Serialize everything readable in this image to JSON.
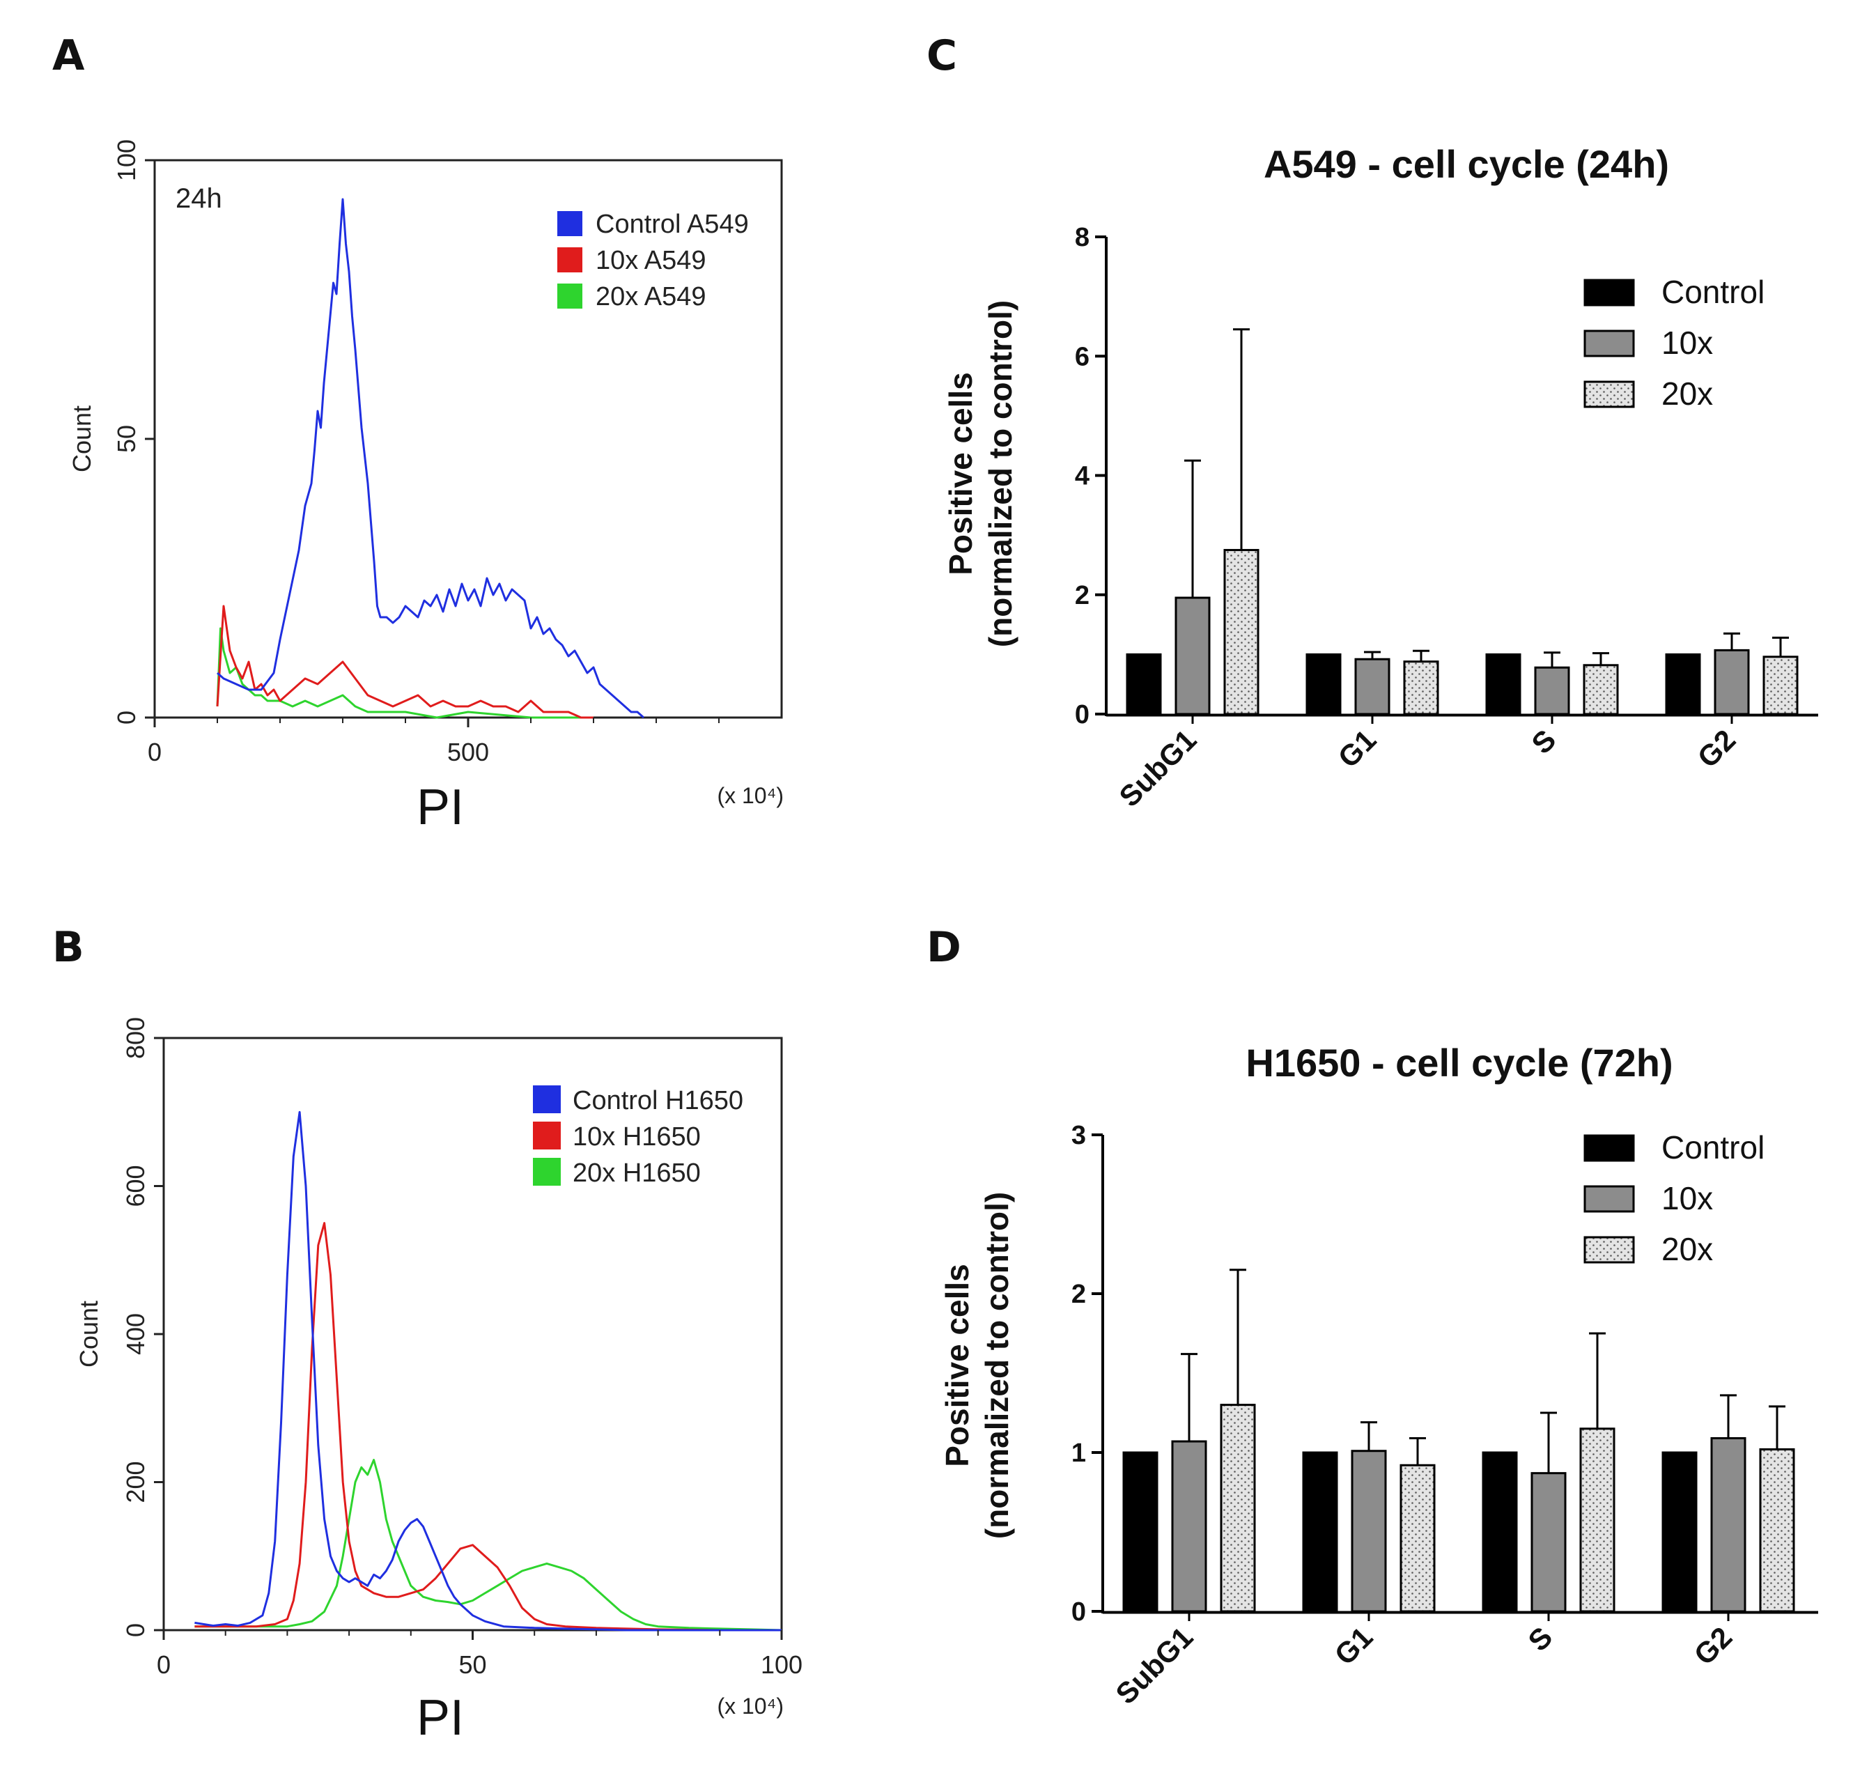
{
  "panel_letters": {
    "a": "A",
    "b": "B",
    "c": "C",
    "d": "D"
  },
  "colors": {
    "blue": "#1f2fe0",
    "red": "#e01c1c",
    "green": "#2ed42e",
    "black": "#000000",
    "gray": "#8c8c8c",
    "dotted": "#dedede"
  },
  "chart_data": [
    {
      "id": "A",
      "type": "line",
      "kind": "histogram",
      "annotation": "24h",
      "xlabel": "PI",
      "unit": "(x 10⁴)",
      "ylabel": "Count",
      "xlim": [
        0,
        1000
      ],
      "ylim": [
        0,
        100
      ],
      "x_ticks": [
        "0",
        "500"
      ],
      "y_ticks": [
        "0",
        "50",
        "100"
      ],
      "legend": [
        "Control A549",
        "10x A549",
        "20x A549"
      ],
      "series": [
        {
          "name": "Control A549",
          "x": [
            100,
            110,
            130,
            150,
            170,
            190,
            200,
            215,
            230,
            240,
            250,
            255,
            260,
            265,
            270,
            275,
            280,
            285,
            290,
            295,
            300,
            305,
            310,
            315,
            320,
            330,
            340,
            350,
            355,
            360,
            370,
            380,
            390,
            400,
            410,
            420,
            430,
            440,
            450,
            460,
            470,
            480,
            490,
            500,
            510,
            520,
            530,
            540,
            550,
            560,
            570,
            580,
            590,
            600,
            610,
            620,
            630,
            640,
            650,
            660,
            670,
            680,
            690,
            700,
            710,
            720,
            730,
            740,
            750,
            760,
            770,
            780
          ],
          "y": [
            8,
            7,
            6,
            5,
            5,
            8,
            14,
            22,
            30,
            38,
            42,
            48,
            55,
            52,
            60,
            66,
            72,
            78,
            76,
            85,
            93,
            85,
            80,
            72,
            66,
            52,
            42,
            28,
            20,
            18,
            18,
            17,
            18,
            20,
            19,
            18,
            21,
            20,
            22,
            19,
            23,
            20,
            24,
            21,
            23,
            20,
            25,
            22,
            24,
            21,
            23,
            22,
            21,
            16,
            18,
            15,
            16,
            14,
            13,
            11,
            12,
            10,
            8,
            9,
            6,
            5,
            4,
            3,
            2,
            1,
            1,
            0
          ]
        },
        {
          "name": "10x A549",
          "x": [
            100,
            110,
            120,
            130,
            140,
            150,
            160,
            170,
            180,
            190,
            200,
            220,
            240,
            260,
            280,
            300,
            320,
            340,
            360,
            380,
            400,
            420,
            440,
            460,
            480,
            500,
            520,
            540,
            560,
            580,
            600,
            620,
            640,
            660,
            680,
            700
          ],
          "y": [
            2,
            20,
            12,
            9,
            7,
            10,
            5,
            6,
            4,
            5,
            3,
            5,
            7,
            6,
            8,
            10,
            7,
            4,
            3,
            2,
            3,
            4,
            2,
            3,
            2,
            2,
            3,
            2,
            2,
            1,
            3,
            1,
            1,
            1,
            0,
            0
          ]
        },
        {
          "name": "20x A549",
          "x": [
            100,
            105,
            110,
            120,
            130,
            140,
            150,
            160,
            170,
            180,
            190,
            200,
            220,
            240,
            260,
            280,
            300,
            320,
            340,
            360,
            400,
            450,
            500,
            600,
            700
          ],
          "y": [
            2,
            16,
            12,
            8,
            9,
            6,
            5,
            4,
            4,
            3,
            3,
            3,
            2,
            3,
            2,
            3,
            4,
            2,
            1,
            1,
            1,
            0,
            1,
            0,
            0
          ]
        }
      ]
    },
    {
      "id": "B",
      "type": "line",
      "kind": "histogram",
      "xlabel": "PI",
      "unit": "(x 10⁴)",
      "ylabel": "Count",
      "xlim": [
        0,
        100
      ],
      "ylim": [
        0,
        800
      ],
      "x_ticks": [
        "0",
        "50",
        "100"
      ],
      "y_ticks": [
        "0",
        "200",
        "400",
        "600",
        "800"
      ],
      "legend": [
        "Control H1650",
        "10x H1650",
        "20x H1650"
      ],
      "series": [
        {
          "name": "Control H1650",
          "x": [
            5,
            8,
            10,
            12,
            14,
            16,
            17,
            18,
            19,
            20,
            21,
            22,
            23,
            24,
            25,
            26,
            27,
            28,
            29,
            30,
            31,
            32,
            33,
            34,
            35,
            36,
            37,
            38,
            39,
            40,
            41,
            42,
            43,
            44,
            45,
            46,
            47,
            48,
            50,
            52,
            55,
            60,
            65,
            70,
            75,
            80,
            90,
            100
          ],
          "y": [
            10,
            6,
            8,
            6,
            10,
            20,
            50,
            120,
            280,
            480,
            640,
            700,
            600,
            420,
            250,
            150,
            100,
            80,
            70,
            65,
            70,
            65,
            60,
            75,
            70,
            80,
            95,
            120,
            135,
            145,
            150,
            140,
            120,
            100,
            80,
            60,
            45,
            35,
            20,
            12,
            5,
            3,
            2,
            1,
            0,
            0,
            0,
            0
          ]
        },
        {
          "name": "10x H1650",
          "x": [
            5,
            10,
            15,
            18,
            20,
            21,
            22,
            23,
            24,
            25,
            26,
            27,
            28,
            29,
            30,
            31,
            32,
            33,
            34,
            36,
            38,
            40,
            42,
            44,
            46,
            48,
            50,
            52,
            54,
            56,
            58,
            60,
            62,
            65,
            70,
            75,
            80,
            90,
            100
          ],
          "y": [
            5,
            5,
            5,
            8,
            15,
            40,
            90,
            200,
            380,
            520,
            550,
            480,
            340,
            200,
            120,
            80,
            60,
            55,
            50,
            45,
            45,
            50,
            55,
            70,
            90,
            110,
            115,
            100,
            85,
            60,
            30,
            15,
            8,
            5,
            3,
            2,
            1,
            0,
            0
          ]
        },
        {
          "name": "20x H1650",
          "x": [
            5,
            10,
            15,
            20,
            22,
            24,
            26,
            28,
            29,
            30,
            31,
            32,
            33,
            34,
            35,
            36,
            37,
            38,
            39,
            40,
            42,
            44,
            46,
            48,
            50,
            52,
            54,
            56,
            58,
            60,
            62,
            64,
            66,
            68,
            70,
            72,
            74,
            76,
            78,
            80,
            85,
            90,
            95,
            100
          ],
          "y": [
            5,
            5,
            5,
            5,
            8,
            12,
            25,
            60,
            100,
            150,
            200,
            220,
            210,
            230,
            200,
            150,
            120,
            100,
            80,
            60,
            45,
            40,
            38,
            35,
            40,
            50,
            60,
            70,
            80,
            85,
            90,
            85,
            80,
            70,
            55,
            40,
            25,
            15,
            8,
            5,
            3,
            2,
            1,
            0
          ]
        }
      ]
    },
    {
      "id": "C",
      "type": "bar",
      "title": "A549 - cell cycle (24h)",
      "ylabel_line1": "Positive cells",
      "ylabel_line2": "(normalized to control)",
      "ylim": [
        0,
        8
      ],
      "y_ticks": [
        "0",
        "2",
        "4",
        "6",
        "8"
      ],
      "categories": [
        "SubG1",
        "G1",
        "S",
        "G2"
      ],
      "legend": [
        "Control",
        "10x",
        "20x"
      ],
      "series": [
        {
          "name": "Control",
          "values": [
            1,
            1,
            1,
            1
          ],
          "errors": [
            0,
            0,
            0,
            0
          ]
        },
        {
          "name": "10x",
          "values": [
            1.95,
            0.92,
            0.78,
            1.07
          ],
          "errors": [
            2.3,
            0.12,
            0.25,
            0.28
          ]
        },
        {
          "name": "20x",
          "values": [
            2.75,
            0.88,
            0.82,
            0.96
          ],
          "errors": [
            3.7,
            0.18,
            0.2,
            0.32
          ]
        }
      ]
    },
    {
      "id": "D",
      "type": "bar",
      "title": "H1650 - cell cycle (72h)",
      "ylabel_line1": "Positive cells",
      "ylabel_line2": "(normalized to control)",
      "ylim": [
        0,
        3
      ],
      "y_ticks": [
        "0",
        "1",
        "2",
        "3"
      ],
      "categories": [
        "SubG1",
        "G1",
        "S",
        "G2"
      ],
      "legend": [
        "Control",
        "10x",
        "20x"
      ],
      "series": [
        {
          "name": "Control",
          "values": [
            1,
            1,
            1,
            1
          ],
          "errors": [
            0,
            0,
            0,
            0
          ]
        },
        {
          "name": "10x",
          "values": [
            1.07,
            1.01,
            0.87,
            1.09
          ],
          "errors": [
            0.55,
            0.18,
            0.38,
            0.27
          ]
        },
        {
          "name": "20x",
          "values": [
            1.3,
            0.92,
            1.15,
            1.02
          ],
          "errors": [
            0.85,
            0.17,
            0.6,
            0.27
          ]
        }
      ]
    }
  ]
}
